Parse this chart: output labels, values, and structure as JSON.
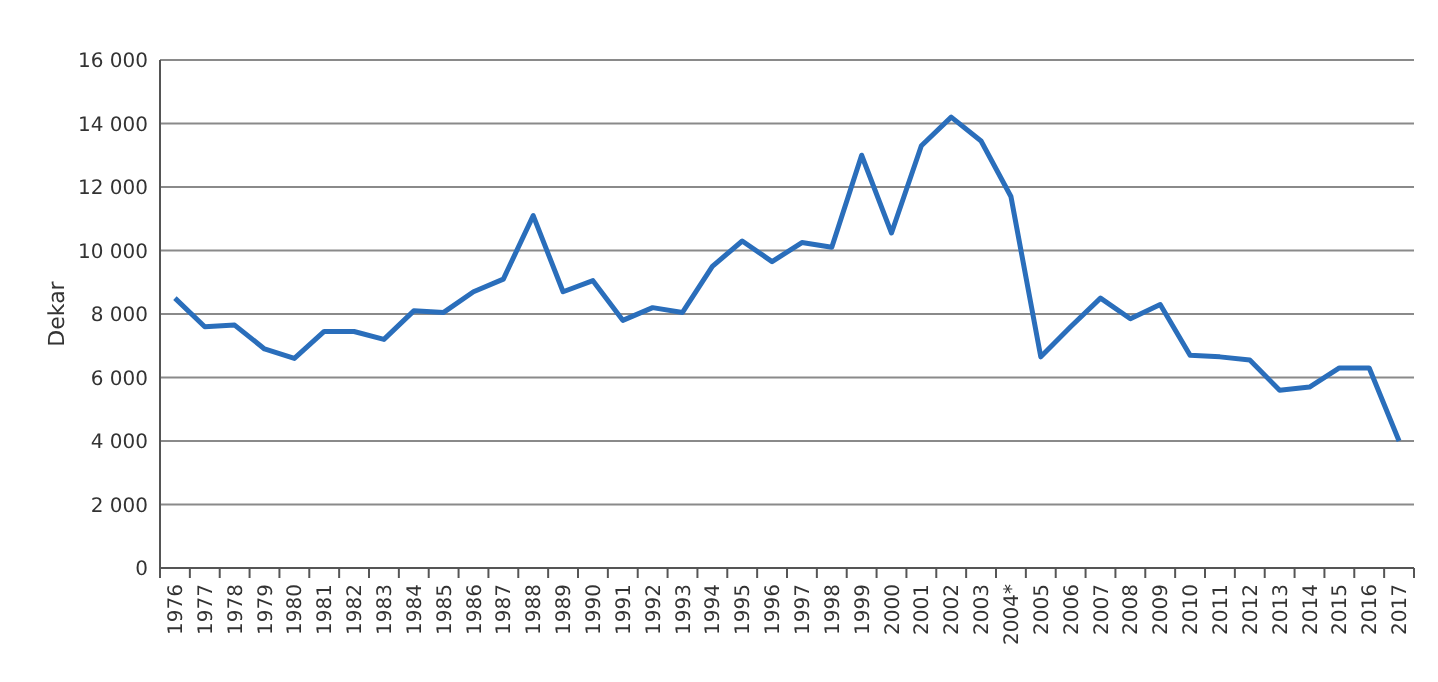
{
  "chart_data": {
    "type": "line",
    "ylabel": "Dekar",
    "categories": [
      "1976",
      "1977",
      "1978",
      "1979",
      "1980",
      "1981",
      "1982",
      "1983",
      "1984",
      "1985",
      "1986",
      "1987",
      "1988",
      "1989",
      "1990",
      "1991",
      "1992",
      "1993",
      "1994",
      "1995",
      "1996",
      "1997",
      "1998",
      "1999",
      "2000",
      "2001",
      "2002",
      "2003",
      "2004*",
      "2005",
      "2006",
      "2007",
      "2008",
      "2009",
      "2010",
      "2011",
      "2012",
      "2013",
      "2014",
      "2015",
      "2016",
      "2017"
    ],
    "series": [
      {
        "color": "#2a6ebb",
        "values": [
          8500,
          7600,
          7650,
          6900,
          6600,
          7450,
          7450,
          7200,
          8100,
          8050,
          8700,
          9100,
          11100,
          8700,
          9050,
          7800,
          8200,
          8050,
          9500,
          10300,
          9650,
          10250,
          10100,
          13000,
          10550,
          13300,
          14200,
          13450,
          11700,
          6650,
          7600,
          8500,
          7850,
          8300,
          6700,
          6650,
          6550,
          5600,
          5700,
          6300,
          6300,
          4000
        ]
      }
    ],
    "ylim": [
      0,
      16000
    ],
    "yticks": [
      {
        "value": 0,
        "label": "0"
      },
      {
        "value": 2000,
        "label": "2 000"
      },
      {
        "value": 4000,
        "label": "4 000"
      },
      {
        "value": 6000,
        "label": "6 000"
      },
      {
        "value": 8000,
        "label": "8 000"
      },
      {
        "value": 10000,
        "label": "10 000"
      },
      {
        "value": 12000,
        "label": "12 000"
      },
      {
        "value": 14000,
        "label": "14 000"
      },
      {
        "value": 16000,
        "label": "16 000"
      }
    ],
    "grid": "y",
    "marker": "none",
    "line_style": "solid"
  }
}
